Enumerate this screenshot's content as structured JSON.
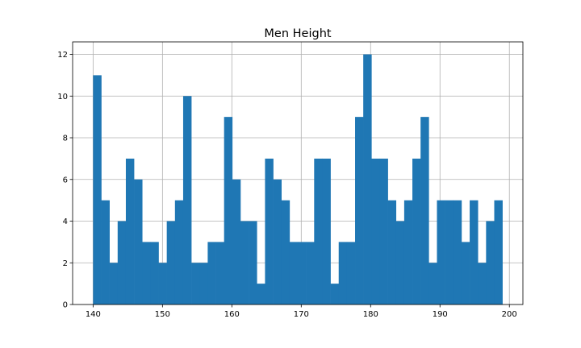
{
  "chart_data": {
    "type": "bar",
    "title": "Men Height",
    "xlabel": "",
    "ylabel": "",
    "bar_color": "#1f77b4",
    "grid": true,
    "grid_color": "#b0b0b0",
    "xlim": [
      137.05,
      201.95
    ],
    "ylim": [
      0,
      12.6
    ],
    "bin_width": 1.18,
    "x_ticks": [
      140,
      150,
      160,
      170,
      180,
      190,
      200
    ],
    "y_ticks": [
      0,
      2,
      4,
      6,
      8,
      10,
      12
    ],
    "bin_edges": [
      140.0,
      141.18,
      142.36,
      143.54,
      144.72,
      145.9,
      147.08,
      148.26,
      149.44,
      150.62,
      151.8,
      152.98,
      154.16,
      155.34,
      156.52,
      157.7,
      158.88,
      160.06,
      161.24,
      162.42,
      163.6,
      164.78,
      165.96,
      167.14,
      168.32,
      169.5,
      170.68,
      171.86,
      173.04,
      174.22,
      175.4,
      176.58,
      177.76,
      178.94,
      180.12,
      181.3,
      182.48,
      183.66,
      184.84,
      186.02,
      187.2,
      188.38,
      189.56,
      190.74,
      191.92,
      193.1,
      194.28,
      195.46,
      196.64,
      197.82,
      199.0
    ],
    "counts": [
      11,
      5,
      2,
      4,
      7,
      6,
      3,
      3,
      2,
      4,
      5,
      10,
      2,
      2,
      3,
      3,
      9,
      6,
      4,
      4,
      1,
      7,
      6,
      5,
      3,
      3,
      3,
      7,
      7,
      1,
      3,
      3,
      9,
      12,
      7,
      7,
      5,
      4,
      5,
      7,
      9,
      2,
      5,
      5,
      5,
      3,
      5,
      2,
      4,
      5
    ]
  }
}
